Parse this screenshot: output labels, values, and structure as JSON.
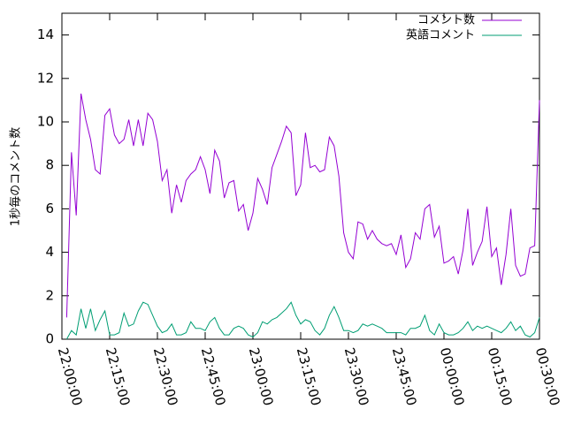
{
  "chart_data": {
    "type": "line",
    "title": "",
    "xlabel": "",
    "ylabel": "1秒毎のコメント数",
    "xlim": [
      "22:00:00",
      "00:30:00"
    ],
    "ylim": [
      0,
      15
    ],
    "x_ticks": [
      "22:00:00",
      "22:15:00",
      "22:30:00",
      "22:45:00",
      "23:00:00",
      "23:15:00",
      "23:30:00",
      "23:45:00",
      "00:00:00",
      "00:15:00",
      "00:30:00"
    ],
    "y_ticks": [
      0,
      2,
      4,
      6,
      8,
      10,
      12,
      14
    ],
    "grid": false,
    "legend_position": "top-right",
    "x_interval_seconds": 90,
    "x_start": "22:01:30",
    "series": [
      {
        "name": "コメント数",
        "color": "#9400d3",
        "values": [
          1.0,
          8.6,
          5.7,
          11.3,
          10.1,
          9.2,
          7.8,
          7.6,
          10.3,
          10.6,
          9.4,
          9.0,
          9.2,
          10.1,
          8.9,
          10.1,
          8.9,
          10.4,
          10.1,
          9.1,
          7.3,
          7.8,
          5.8,
          7.1,
          6.3,
          7.3,
          7.6,
          7.8,
          8.4,
          7.8,
          6.7,
          8.7,
          8.2,
          6.5,
          7.2,
          7.3,
          5.9,
          6.2,
          5.0,
          5.8,
          7.4,
          6.9,
          6.2,
          7.9,
          8.5,
          9.1,
          9.8,
          9.5,
          6.6,
          7.1,
          9.5,
          7.9,
          8.0,
          7.7,
          7.8,
          9.3,
          8.9,
          7.5,
          4.9,
          4.0,
          3.7,
          5.4,
          5.3,
          4.6,
          5.0,
          4.6,
          4.4,
          4.3,
          4.4,
          3.9,
          4.8,
          3.3,
          3.7,
          4.9,
          4.6,
          6.0,
          6.2,
          4.7,
          5.2,
          3.5,
          3.6,
          3.8,
          3.0,
          4.1,
          6.0,
          3.4,
          4.0,
          4.5,
          6.1,
          3.8,
          4.2,
          2.5,
          3.9,
          6.0,
          3.4,
          2.9,
          3.0,
          4.2,
          4.3,
          11.0
        ]
      },
      {
        "name": "英語コメント",
        "color": "#009e73",
        "values": [
          0.0,
          0.4,
          0.2,
          1.4,
          0.5,
          1.4,
          0.4,
          0.9,
          1.3,
          0.2,
          0.2,
          0.3,
          1.2,
          0.6,
          0.7,
          1.3,
          1.7,
          1.6,
          1.1,
          0.6,
          0.3,
          0.4,
          0.7,
          0.2,
          0.2,
          0.3,
          0.8,
          0.5,
          0.5,
          0.4,
          0.8,
          1.0,
          0.5,
          0.2,
          0.2,
          0.5,
          0.6,
          0.5,
          0.2,
          0.1,
          0.3,
          0.8,
          0.7,
          0.9,
          1.0,
          1.2,
          1.4,
          1.7,
          1.1,
          0.7,
          0.9,
          0.8,
          0.4,
          0.2,
          0.5,
          1.1,
          1.5,
          1.0,
          0.4,
          0.4,
          0.3,
          0.4,
          0.7,
          0.6,
          0.7,
          0.6,
          0.5,
          0.3,
          0.3,
          0.3,
          0.3,
          0.2,
          0.5,
          0.5,
          0.6,
          1.1,
          0.4,
          0.2,
          0.7,
          0.3,
          0.2,
          0.2,
          0.3,
          0.5,
          0.8,
          0.4,
          0.6,
          0.5,
          0.6,
          0.5,
          0.4,
          0.3,
          0.5,
          0.8,
          0.4,
          0.6,
          0.2,
          0.1,
          0.3,
          1.0
        ]
      }
    ]
  }
}
